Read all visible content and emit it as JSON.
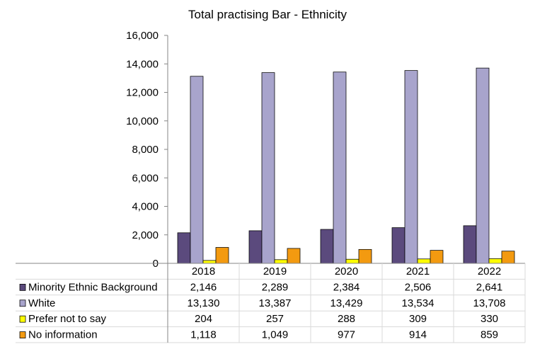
{
  "chart_data": {
    "type": "bar",
    "title": "Total practising Bar - Ethnicity",
    "categories": [
      "2018",
      "2019",
      "2020",
      "2021",
      "2022"
    ],
    "yticks": [
      "0",
      "2,000",
      "4,000",
      "6,000",
      "8,000",
      "10,000",
      "12,000",
      "14,000",
      "16,000"
    ],
    "ylim": [
      0,
      16000
    ],
    "grid": false,
    "legend": "data-table-left",
    "series": [
      {
        "name": "Minority Ethnic Background",
        "color": "#5b4a7d",
        "values": [
          2146,
          2289,
          2384,
          2506,
          2641
        ],
        "labels": [
          "2,146",
          "2,289",
          "2,384",
          "2,506",
          "2,641"
        ]
      },
      {
        "name": "White",
        "color": "#a8a4cc",
        "values": [
          13130,
          13387,
          13429,
          13534,
          13708
        ],
        "labels": [
          "13,130",
          "13,387",
          "13,429",
          "13,534",
          "13,708"
        ]
      },
      {
        "name": "Prefer not to say",
        "color": "#ffff00",
        "values": [
          204,
          257,
          288,
          309,
          330
        ],
        "labels": [
          "204",
          "257",
          "288",
          "309",
          "330"
        ]
      },
      {
        "name": "No information",
        "color": "#f39a10",
        "values": [
          1118,
          1049,
          977,
          914,
          859
        ],
        "labels": [
          "1,118",
          "1,049",
          "977",
          "914",
          "859"
        ]
      }
    ]
  }
}
